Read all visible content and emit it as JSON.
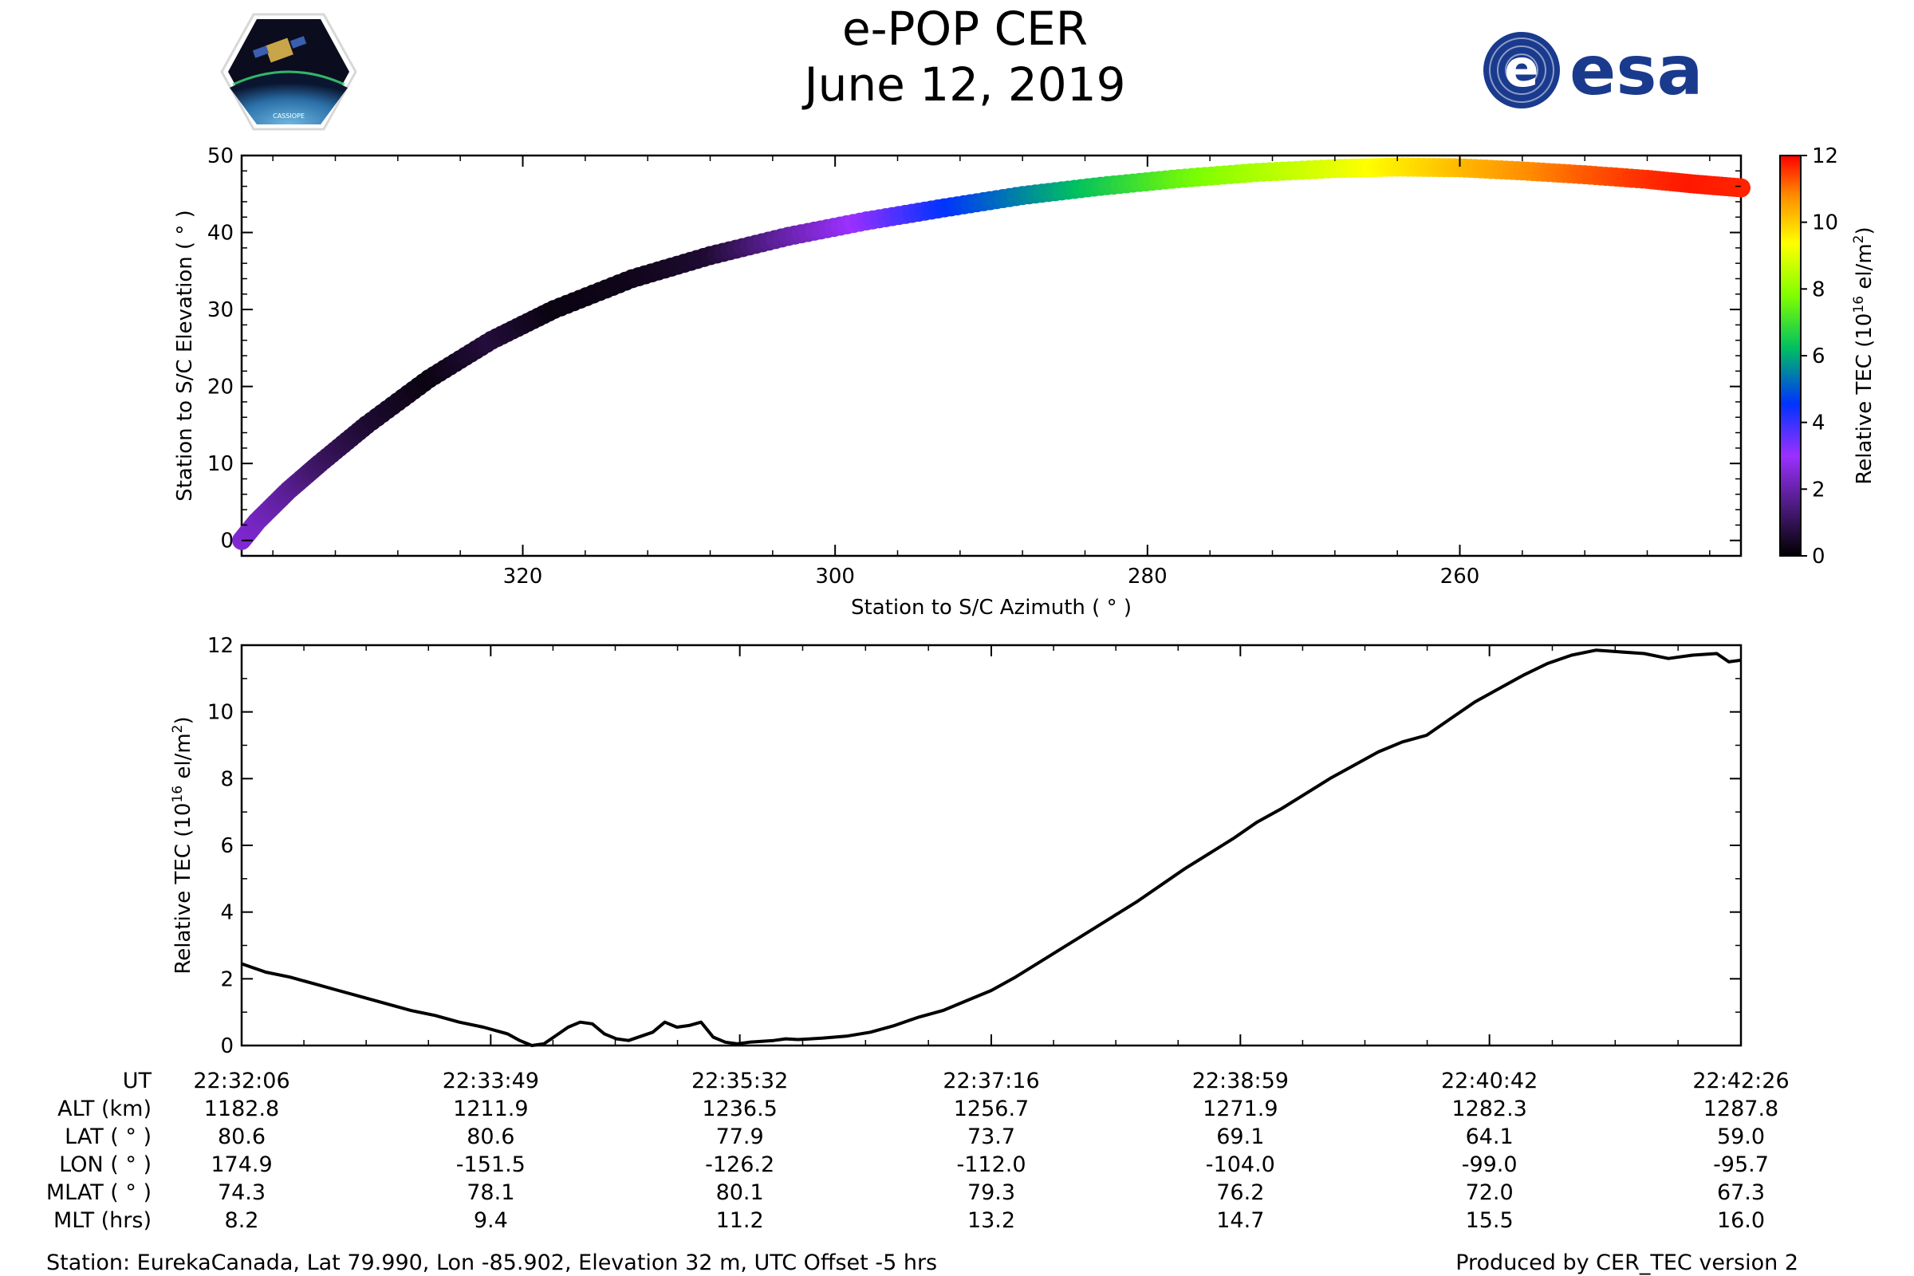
{
  "title": "e-POP CER",
  "subtitle": "June 12, 2019",
  "logos": {
    "left": "CASSIOPE",
    "right": "esa"
  },
  "colors": {
    "line": "#000000",
    "esa_brand": "#1a3a8e",
    "colorbar_stops": [
      "#000000",
      "#4a1a7a",
      "#9b30ff",
      "#0033ff",
      "#00c060",
      "#7fff00",
      "#ffff00",
      "#ff8c00",
      "#ff0000"
    ]
  },
  "chart_data": [
    {
      "type": "scatter",
      "xlabel": "Station to S/C Azimuth ( ° )",
      "ylabel": "Station to S/C Elevation ( ° )",
      "xlim": [
        338,
        242
      ],
      "ylim": [
        -2,
        50
      ],
      "x_ticks": [
        320,
        300,
        280,
        260
      ],
      "y_ticks": [
        0,
        10,
        20,
        30,
        40,
        50
      ],
      "x_inverted": true,
      "colorbar": {
        "label": "Relative TEC (10",
        "label_sup": "16",
        "label_end": " el/m",
        "label_sup2": "2",
        "label_close": ")",
        "range": [
          0,
          12
        ],
        "ticks": [
          0,
          2,
          4,
          6,
          8,
          10,
          12
        ]
      },
      "track": [
        {
          "az": 338.0,
          "el": 0.0,
          "tec": 2.5
        },
        {
          "az": 337.0,
          "el": 2.5,
          "tec": 2.3
        },
        {
          "az": 335.0,
          "el": 6.5,
          "tec": 1.8
        },
        {
          "az": 333.0,
          "el": 10.0,
          "tec": 1.2
        },
        {
          "az": 330.0,
          "el": 15.0,
          "tec": 0.6
        },
        {
          "az": 326.0,
          "el": 21.0,
          "tec": 0.2
        },
        {
          "az": 322.0,
          "el": 26.0,
          "tec": 0.7
        },
        {
          "az": 318.0,
          "el": 30.0,
          "tec": 0.2
        },
        {
          "az": 313.0,
          "el": 34.0,
          "tec": 0.3
        },
        {
          "az": 308.0,
          "el": 37.0,
          "tec": 0.6
        },
        {
          "az": 303.0,
          "el": 39.5,
          "tec": 2.0
        },
        {
          "az": 298.0,
          "el": 41.5,
          "tec": 3.2
        },
        {
          "az": 293.0,
          "el": 43.2,
          "tec": 4.5
        },
        {
          "az": 288.0,
          "el": 44.8,
          "tec": 5.5
        },
        {
          "az": 283.0,
          "el": 46.0,
          "tec": 6.5
        },
        {
          "az": 278.0,
          "el": 47.0,
          "tec": 7.5
        },
        {
          "az": 273.0,
          "el": 47.8,
          "tec": 8.3
        },
        {
          "az": 268.0,
          "el": 48.3,
          "tec": 9.0
        },
        {
          "az": 264.0,
          "el": 48.5,
          "tec": 9.6
        },
        {
          "az": 260.0,
          "el": 48.4,
          "tec": 10.2
        },
        {
          "az": 256.0,
          "el": 48.0,
          "tec": 10.7
        },
        {
          "az": 252.0,
          "el": 47.5,
          "tec": 11.2
        },
        {
          "az": 248.0,
          "el": 46.9,
          "tec": 11.6
        },
        {
          "az": 245.0,
          "el": 46.3,
          "tec": 11.8
        },
        {
          "az": 242.0,
          "el": 45.8,
          "tec": 11.7
        }
      ]
    },
    {
      "type": "line",
      "ylabel": "Relative TEC (10",
      "ylabel_sup": "16",
      "ylabel_end": " el/m",
      "ylabel_sup2": "2",
      "ylabel_close": ")",
      "ylim": [
        0,
        12
      ],
      "xlim": [
        0,
        620
      ],
      "y_ticks": [
        0,
        2,
        4,
        6,
        8,
        10,
        12
      ],
      "x_tick_seconds": [
        0,
        103,
        206,
        310,
        413,
        516,
        620
      ],
      "series": [
        {
          "t": [
            0,
            10,
            20,
            30,
            40,
            50,
            60,
            70,
            80,
            90,
            100,
            110,
            115,
            120,
            125,
            130,
            135,
            140,
            145,
            150,
            155,
            160,
            170,
            175,
            180,
            185,
            190,
            195,
            200,
            205,
            210,
            220,
            225,
            230,
            240,
            250,
            260,
            270,
            280,
            290,
            300,
            310,
            320,
            330,
            340,
            350,
            360,
            370,
            380,
            390,
            400,
            410,
            420,
            430,
            440,
            450,
            460,
            470,
            480,
            490,
            500,
            510,
            520,
            530,
            540,
            550,
            560,
            570,
            580,
            590,
            600,
            610,
            615,
            620
          ],
          "values": [
            2.45,
            2.2,
            2.05,
            1.85,
            1.65,
            1.45,
            1.25,
            1.05,
            0.9,
            0.7,
            0.55,
            0.35,
            0.15,
            0.0,
            0.05,
            0.3,
            0.55,
            0.7,
            0.65,
            0.35,
            0.2,
            0.15,
            0.4,
            0.7,
            0.55,
            0.6,
            0.7,
            0.25,
            0.1,
            0.05,
            0.1,
            0.15,
            0.2,
            0.18,
            0.22,
            0.28,
            0.4,
            0.6,
            0.85,
            1.05,
            1.35,
            1.65,
            2.05,
            2.5,
            2.95,
            3.4,
            3.85,
            4.3,
            4.8,
            5.3,
            5.75,
            6.2,
            6.7,
            7.1,
            7.55,
            8.0,
            8.4,
            8.8,
            9.1,
            9.3,
            9.8,
            10.3,
            10.7,
            11.1,
            11.45,
            11.7,
            11.85,
            11.8,
            11.75,
            11.6,
            11.7,
            11.75,
            11.5,
            11.55
          ]
        }
      ]
    }
  ],
  "ephemeris": {
    "row_labels": [
      "UT",
      "ALT (km)",
      "LAT ( ° )",
      "LON ( ° )",
      "MLAT ( ° )",
      "MLT (hrs)"
    ],
    "columns": [
      [
        "22:32:06",
        "1182.8",
        "80.6",
        "174.9",
        "74.3",
        "8.2"
      ],
      [
        "22:33:49",
        "1211.9",
        "80.6",
        "-151.5",
        "78.1",
        "9.4"
      ],
      [
        "22:35:32",
        "1236.5",
        "77.9",
        "-126.2",
        "80.1",
        "11.2"
      ],
      [
        "22:37:16",
        "1256.7",
        "73.7",
        "-112.0",
        "79.3",
        "13.2"
      ],
      [
        "22:38:59",
        "1271.9",
        "69.1",
        "-104.0",
        "76.2",
        "14.7"
      ],
      [
        "22:40:42",
        "1282.3",
        "64.1",
        "-99.0",
        "72.0",
        "15.5"
      ],
      [
        "22:42:26",
        "1287.8",
        "59.0",
        "-95.7",
        "67.3",
        "16.0"
      ]
    ]
  },
  "footer": {
    "station": "Station: EurekaCanada, Lat 79.990, Lon -85.902, Elevation 32 m, UTC Offset -5 hrs",
    "produced": "Produced by CER_TEC version 2"
  }
}
